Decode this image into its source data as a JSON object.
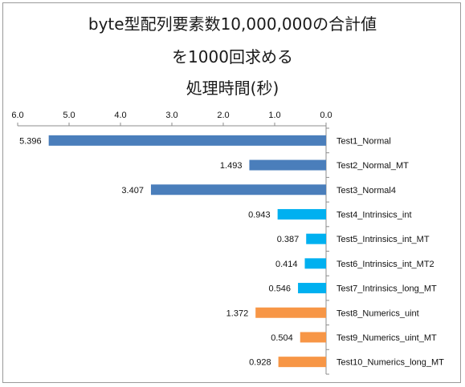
{
  "chart_data": {
    "type": "bar",
    "orientation": "horizontal",
    "x_axis_reversed": true,
    "title_lines": [
      "byte型配列要素数10,000,000の合計値",
      "を1000回求める",
      "処理時間(秒)"
    ],
    "xlim": [
      0,
      6
    ],
    "x_ticks": [
      "6.0",
      "5.0",
      "4.0",
      "3.0",
      "2.0",
      "1.0",
      "0.0"
    ],
    "tick_values": [
      6,
      5,
      4,
      3,
      2,
      1,
      0
    ],
    "grid": false,
    "legend": "none",
    "categories": [
      "Test1_Normal",
      "Test2_Normal_MT",
      "Test3_Normal4",
      "Test4_Intrinsics_int",
      "Test5_Intrinsics_int_MT",
      "Test6_Intrinsics_int_MT2",
      "Test7_Intrinsics_long_MT",
      "Test8_Numerics_uint",
      "Test9_Numerics_uint_MT",
      "Test10_Numerics_long_MT"
    ],
    "values": [
      5.396,
      1.493,
      3.407,
      0.943,
      0.387,
      0.414,
      0.546,
      1.372,
      0.504,
      0.928
    ],
    "value_labels": [
      "5.396",
      "1.493",
      "3.407",
      "0.943",
      "0.387",
      "0.414",
      "0.546",
      "1.372",
      "0.504",
      "0.928"
    ],
    "bar_colors": [
      "#4a7ebb",
      "#4a7ebb",
      "#4a7ebb",
      "#00b0f0",
      "#00b0f0",
      "#00b0f0",
      "#00b0f0",
      "#f79646",
      "#f79646",
      "#f79646"
    ]
  }
}
